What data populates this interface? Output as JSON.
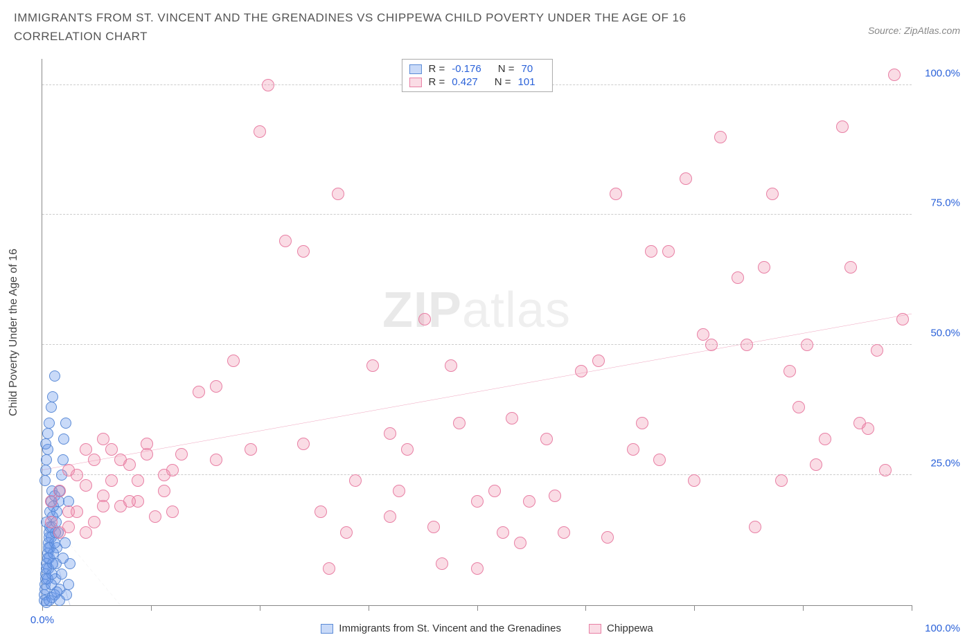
{
  "title": "IMMIGRANTS FROM ST. VINCENT AND THE GRENADINES VS CHIPPEWA CHILD POVERTY UNDER THE AGE OF 16 CORRELATION CHART",
  "source": "Source: ZipAtlas.com",
  "watermark_bold": "ZIP",
  "watermark_thin": "atlas",
  "chart": {
    "type": "scatter",
    "y_axis_title": "Child Poverty Under the Age of 16",
    "xlim": [
      0,
      100
    ],
    "ylim": [
      0,
      105
    ],
    "y_ticks": [
      25,
      50,
      75,
      100
    ],
    "y_tick_labels": [
      "25.0%",
      "50.0%",
      "75.0%",
      "100.0%"
    ],
    "x_ticks": [
      0,
      12.5,
      25,
      37.5,
      50,
      62.5,
      75,
      87.5,
      100
    ],
    "x_min_label": "0.0%",
    "x_max_label": "100.0%",
    "grid_color": "#cccccc",
    "axis_color": "#888888",
    "background": "#ffffff",
    "label_color": "#2b62d9",
    "series": [
      {
        "key": "svg_immigrants",
        "name": "Immigrants from St. Vincent and the Grenadines",
        "color_fill": "rgba(100,150,235,0.35)",
        "color_stroke": "#5a8ad6",
        "marker_radius": 8,
        "R": "-0.176",
        "N": "70",
        "trend": {
          "x1": 0,
          "y1": 17,
          "x2": 3.2,
          "y2": 0,
          "stroke": "#3a64c8",
          "width": 2.2,
          "dash": "none"
        },
        "points": [
          [
            0.2,
            2
          ],
          [
            0.3,
            4
          ],
          [
            0.4,
            6
          ],
          [
            0.5,
            8
          ],
          [
            0.6,
            10
          ],
          [
            0.7,
            12
          ],
          [
            0.8,
            14
          ],
          [
            0.5,
            16
          ],
          [
            0.9,
            18
          ],
          [
            1.0,
            20
          ],
          [
            1.1,
            22
          ],
          [
            0.6,
            5
          ],
          [
            0.7,
            7
          ],
          [
            0.8,
            9
          ],
          [
            0.9,
            11
          ],
          [
            1.0,
            13
          ],
          [
            1.1,
            15
          ],
          [
            1.2,
            17
          ],
          [
            1.3,
            19
          ],
          [
            1.4,
            21
          ],
          [
            0.3,
            24
          ],
          [
            0.4,
            26
          ],
          [
            0.5,
            28
          ],
          [
            0.6,
            30
          ],
          [
            1.5,
            5
          ],
          [
            1.6,
            8
          ],
          [
            1.7,
            11
          ],
          [
            1.8,
            14
          ],
          [
            1.9,
            20
          ],
          [
            2.0,
            22
          ],
          [
            2.2,
            25
          ],
          [
            2.4,
            28
          ],
          [
            0.2,
            1
          ],
          [
            0.3,
            3
          ],
          [
            0.4,
            5
          ],
          [
            0.5,
            7
          ],
          [
            0.6,
            9
          ],
          [
            0.7,
            11
          ],
          [
            0.8,
            13
          ],
          [
            0.9,
            15
          ],
          [
            1.0,
            4
          ],
          [
            1.1,
            6
          ],
          [
            1.2,
            8
          ],
          [
            1.3,
            10
          ],
          [
            1.4,
            12
          ],
          [
            1.5,
            14
          ],
          [
            1.6,
            16
          ],
          [
            1.7,
            18
          ],
          [
            2.5,
            32
          ],
          [
            2.7,
            35
          ],
          [
            1.0,
            38
          ],
          [
            1.2,
            40
          ],
          [
            1.4,
            44
          ],
          [
            0.8,
            35
          ],
          [
            0.6,
            33
          ],
          [
            0.4,
            31
          ],
          [
            2.0,
            3
          ],
          [
            2.2,
            6
          ],
          [
            2.4,
            9
          ],
          [
            2.6,
            12
          ],
          [
            2.8,
            2
          ],
          [
            3.0,
            4
          ],
          [
            3.0,
            20
          ],
          [
            3.2,
            8
          ],
          [
            0.5,
            0.5
          ],
          [
            0.8,
            1
          ],
          [
            1.1,
            1.5
          ],
          [
            1.4,
            2
          ],
          [
            1.7,
            2.5
          ],
          [
            2.0,
            1
          ]
        ]
      },
      {
        "key": "chippewa",
        "name": "Chippewa",
        "color_fill": "rgba(240,140,170,0.30)",
        "color_stroke": "#e87fa4",
        "marker_radius": 9,
        "R": "0.427",
        "N": "101",
        "trend": {
          "x1": 0,
          "y1": 26,
          "x2": 100,
          "y2": 56,
          "stroke": "#e25b8a",
          "width": 2.4,
          "dash": "none"
        },
        "extra_dash": {
          "x1": 0,
          "y1": 18,
          "x2": 9,
          "y2": 0,
          "stroke": "#aaaaaa",
          "width": 1,
          "dash": "5,4"
        },
        "points": [
          [
            1,
            20
          ],
          [
            2,
            22
          ],
          [
            3,
            18
          ],
          [
            4,
            25
          ],
          [
            5,
            23
          ],
          [
            6,
            28
          ],
          [
            7,
            21
          ],
          [
            8,
            30
          ],
          [
            9,
            19
          ],
          [
            10,
            27
          ],
          [
            11,
            24
          ],
          [
            12,
            29
          ],
          [
            13,
            17
          ],
          [
            14,
            22
          ],
          [
            15,
            26
          ],
          [
            3,
            15
          ],
          [
            5,
            14
          ],
          [
            7,
            32
          ],
          [
            9,
            28
          ],
          [
            11,
            20
          ],
          [
            18,
            41
          ],
          [
            20,
            28
          ],
          [
            22,
            47
          ],
          [
            24,
            30
          ],
          [
            26,
            100
          ],
          [
            28,
            70
          ],
          [
            30,
            68
          ],
          [
            32,
            18
          ],
          [
            34,
            79
          ],
          [
            36,
            24
          ],
          [
            38,
            46
          ],
          [
            40,
            17
          ],
          [
            42,
            30
          ],
          [
            44,
            55
          ],
          [
            46,
            8
          ],
          [
            48,
            35
          ],
          [
            50,
            7
          ],
          [
            52,
            22
          ],
          [
            54,
            36
          ],
          [
            56,
            20
          ],
          [
            58,
            32
          ],
          [
            60,
            14
          ],
          [
            62,
            45
          ],
          [
            64,
            47
          ],
          [
            66,
            79
          ],
          [
            68,
            30
          ],
          [
            70,
            68
          ],
          [
            72,
            68
          ],
          [
            74,
            82
          ],
          [
            76,
            52
          ],
          [
            78,
            90
          ],
          [
            80,
            63
          ],
          [
            82,
            15
          ],
          [
            84,
            79
          ],
          [
            86,
            45
          ],
          [
            88,
            50
          ],
          [
            90,
            32
          ],
          [
            92,
            92
          ],
          [
            94,
            35
          ],
          [
            96,
            49
          ],
          [
            98,
            102
          ],
          [
            4,
            18
          ],
          [
            6,
            16
          ],
          [
            8,
            24
          ],
          [
            10,
            20
          ],
          [
            12,
            31
          ],
          [
            14,
            25
          ],
          [
            16,
            29
          ],
          [
            5,
            30
          ],
          [
            7,
            19
          ],
          [
            1,
            16
          ],
          [
            2,
            14
          ],
          [
            3,
            26
          ],
          [
            77,
            50
          ],
          [
            85,
            24
          ],
          [
            89,
            27
          ],
          [
            95,
            34
          ],
          [
            83,
            65
          ],
          [
            55,
            12
          ],
          [
            50,
            20
          ],
          [
            45,
            15
          ],
          [
            40,
            33
          ],
          [
            35,
            14
          ],
          [
            30,
            31
          ],
          [
            25,
            91
          ],
          [
            20,
            42
          ],
          [
            15,
            18
          ],
          [
            99,
            55
          ],
          [
            33,
            7
          ],
          [
            41,
            22
          ],
          [
            47,
            46
          ],
          [
            53,
            14
          ],
          [
            59,
            21
          ],
          [
            65,
            13
          ],
          [
            71,
            28
          ],
          [
            97,
            26
          ],
          [
            93,
            65
          ],
          [
            87,
            38
          ],
          [
            81,
            50
          ],
          [
            75,
            24
          ],
          [
            69,
            35
          ]
        ]
      }
    ]
  },
  "legend_top": {
    "r_label": "R =",
    "n_label": "N ="
  }
}
